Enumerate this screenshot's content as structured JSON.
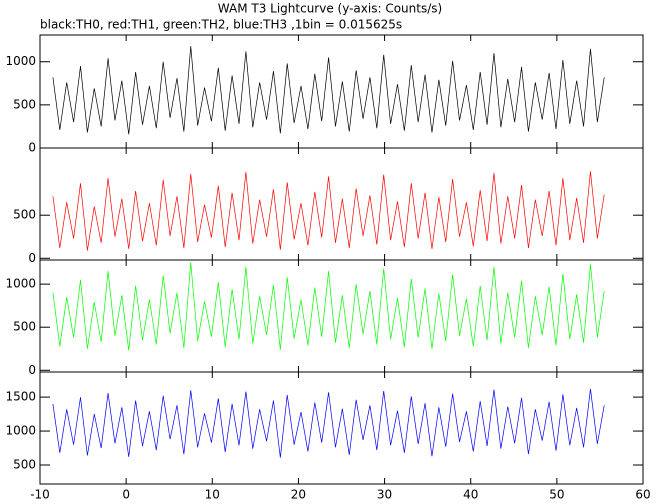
{
  "chart_data": {
    "type": "line",
    "title": "WAM T3 Lightcurve (y-axis: Counts/s)",
    "subtitle": "black:TH0, red:TH1, green:TH2, blue:TH3 ,1bin = 0.015625s",
    "x": [
      -8.5,
      -7.7,
      -6.9,
      -6.1,
      -5.3,
      -4.5,
      -3.7,
      -2.9,
      -2.1,
      -1.3,
      -0.5,
      0.3,
      1.1,
      1.9,
      2.7,
      3.5,
      4.3,
      5.1,
      5.9,
      6.7,
      7.5,
      8.3,
      9.1,
      9.9,
      10.7,
      11.5,
      12.3,
      13.1,
      13.9,
      14.7,
      15.5,
      16.3,
      17.1,
      17.9,
      18.7,
      19.5,
      20.3,
      21.1,
      21.9,
      22.7,
      23.5,
      24.3,
      25.1,
      25.9,
      26.7,
      27.5,
      28.3,
      29.1,
      29.9,
      30.7,
      31.5,
      32.3,
      33.1,
      33.9,
      34.7,
      35.5,
      36.3,
      37.1,
      37.9,
      38.7,
      39.5,
      40.3,
      41.1,
      41.9,
      42.7,
      43.5,
      44.3,
      45.1,
      45.9,
      46.7,
      47.5,
      48.3,
      49.1,
      49.9,
      50.7,
      51.5,
      52.3,
      53.1,
      53.9,
      54.7,
      55.5
    ],
    "xlim": [
      -10,
      60
    ],
    "xticks": [
      -10,
      0,
      10,
      20,
      30,
      40,
      50,
      60
    ],
    "panels": [
      {
        "ylim": [
          0,
          1310
        ],
        "yticks": [
          0,
          500,
          1000
        ],
        "series": [
          {
            "color": "#000000",
            "values": [
              820,
              210,
              760,
              300,
              950,
              180,
              690,
              250,
              1040,
              320,
              780,
              160,
              880,
              270,
              720,
              230,
              1000,
              350,
              810,
              190,
              1180,
              260,
              700,
              310,
              930,
              200,
              840,
              280,
              1120,
              240,
              760,
              330,
              890,
              170,
              980,
              290,
              720,
              220,
              860,
              310,
              1050,
              250,
              770,
              190,
              900,
              340,
              820,
              230,
              1080,
              280,
              740,
              200,
              960,
              300,
              850,
              180,
              790,
              260,
              1010,
              320,
              730,
              210,
              880,
              270,
              1100,
              240,
              800,
              300,
              940,
              190,
              760,
              330,
              870,
              220,
              1020,
              280,
              780,
              250,
              1150,
              300,
              820
            ]
          }
        ]
      },
      {
        "ylim": [
          -20,
          1280
        ],
        "yticks": [
          0,
          500
        ],
        "series": [
          {
            "color": "#ff0000",
            "values": [
              720,
              120,
              650,
              230,
              870,
              90,
              600,
              180,
              930,
              250,
              690,
              110,
              780,
              200,
              640,
              150,
              910,
              260,
              720,
              120,
              980,
              190,
              620,
              240,
              840,
              130,
              760,
              210,
              1000,
              170,
              680,
              250,
              800,
              100,
              880,
              220,
              640,
              150,
              770,
              240,
              950,
              180,
              690,
              120,
              810,
              260,
              730,
              160,
              970,
              210,
              660,
              130,
              870,
              230,
              760,
              110,
              710,
              190,
              920,
              250,
              650,
              140,
              790,
              200,
              990,
              170,
              720,
              230,
              850,
              120,
              680,
              260,
              780,
              150,
              930,
              210,
              700,
              180,
              1010,
              230,
              740
            ]
          }
        ]
      },
      {
        "ylim": [
          -20,
          1280
        ],
        "yticks": [
          0,
          500,
          1000
        ],
        "series": [
          {
            "color": "#00ff00",
            "values": [
              900,
              280,
              850,
              380,
              1050,
              250,
              790,
              330,
              1150,
              400,
              870,
              230,
              980,
              350,
              820,
              300,
              1100,
              430,
              900,
              260,
              1250,
              340,
              800,
              390,
              1020,
              270,
              940,
              360,
              1200,
              310,
              860,
              410,
              990,
              240,
              1080,
              370,
              820,
              290,
              960,
              390,
              1150,
              320,
              870,
              260,
              1000,
              420,
              920,
              300,
              1180,
              360,
              840,
              270,
              1060,
              380,
              950,
              250,
              890,
              340,
              1110,
              400,
              830,
              280,
              980,
              350,
              1200,
              310,
              900,
              380,
              1040,
              260,
              860,
              410,
              970,
              290,
              1120,
              360,
              880,
              320,
              1230,
              380,
              920
            ]
          }
        ]
      },
      {
        "ylim": [
          220,
          1870
        ],
        "yticks": [
          500,
          1000,
          1500
        ],
        "series": [
          {
            "color": "#0000ff",
            "values": [
              1400,
              680,
              1320,
              800,
              1500,
              640,
              1250,
              750,
              1560,
              820,
              1350,
              620,
              1450,
              780,
              1290,
              720,
              1520,
              880,
              1380,
              660,
              1600,
              760,
              1260,
              830,
              1480,
              690,
              1400,
              790,
              1580,
              740,
              1320,
              850,
              1450,
              610,
              1530,
              800,
              1280,
              700,
              1420,
              830,
              1570,
              760,
              1330,
              650,
              1460,
              870,
              1380,
              720,
              1590,
              790,
              1300,
              680,
              1510,
              810,
              1410,
              630,
              1350,
              770,
              1550,
              840,
              1290,
              700,
              1440,
              780,
              1610,
              740,
              1360,
              820,
              1490,
              660,
              1320,
              860,
              1430,
              710,
              1540,
              790,
              1340,
              760,
              1620,
              810,
              1380
            ]
          }
        ]
      }
    ]
  }
}
